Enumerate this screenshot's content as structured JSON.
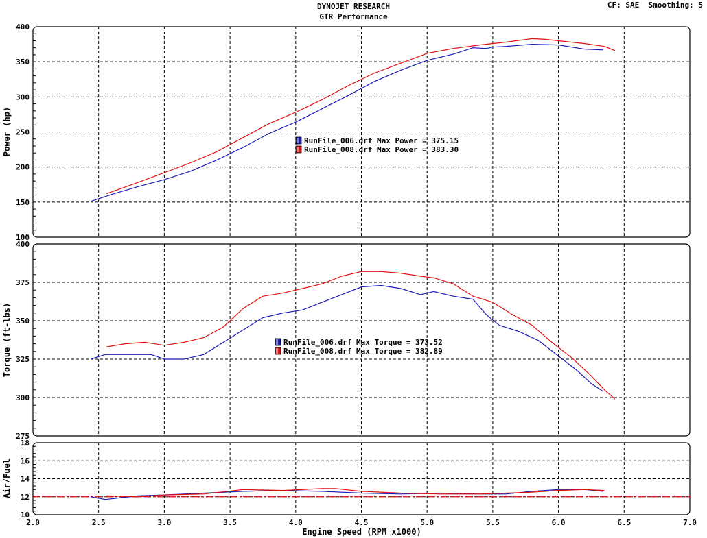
{
  "header": {
    "title": "DYNOJET RESEARCH",
    "subtitle": "GTR Performance",
    "cf_label": "CF: SAE",
    "smoothing_label": "Smoothing: 5"
  },
  "colors": {
    "run_006": "#1a1ab4",
    "run_008": "#e01010",
    "grid": "#000000",
    "afr_ref": "#e01010"
  },
  "chart_data": [
    {
      "type": "line",
      "title": "",
      "ylabel": "Power (hp)",
      "xlabel": "",
      "xlim": [
        2.0,
        7.0
      ],
      "ylim": [
        100,
        400
      ],
      "yticks": [
        100,
        150,
        200,
        250,
        300,
        350,
        400
      ],
      "grid": true,
      "series": [
        {
          "name": "RunFile_006.drf",
          "color": "#1a1ab4",
          "x": [
            2.44,
            2.6,
            2.8,
            3.0,
            3.2,
            3.4,
            3.6,
            3.8,
            4.0,
            4.2,
            4.4,
            4.6,
            4.8,
            5.0,
            5.2,
            5.35,
            5.45,
            5.5,
            5.6,
            5.8,
            6.0,
            6.2,
            6.34
          ],
          "y": [
            151,
            161,
            172,
            182,
            194,
            210,
            228,
            248,
            264,
            283,
            302,
            322,
            338,
            352,
            361,
            370,
            369,
            371,
            372,
            375,
            374,
            368,
            367
          ]
        },
        {
          "name": "RunFile_008.drf",
          "color": "#e01010",
          "x": [
            2.56,
            2.8,
            3.0,
            3.2,
            3.4,
            3.6,
            3.8,
            4.0,
            4.2,
            4.4,
            4.6,
            4.8,
            5.0,
            5.2,
            5.4,
            5.6,
            5.8,
            5.9,
            6.0,
            6.2,
            6.35,
            6.43
          ],
          "y": [
            162,
            178,
            192,
            206,
            222,
            242,
            262,
            278,
            296,
            316,
            334,
            348,
            362,
            369,
            374,
            378,
            383,
            382,
            380,
            376,
            372,
            366
          ]
        }
      ],
      "legend": [
        {
          "series": "RunFile_006.drf",
          "label": "RunFile_006.drf Max Power = 375.15"
        },
        {
          "series": "RunFile_008.drf",
          "label": "RunFile_008.drf Max Power = 383.30"
        }
      ]
    },
    {
      "type": "line",
      "title": "",
      "ylabel": "Torque (ft-lbs)",
      "xlabel": "",
      "xlim": [
        2.0,
        7.0
      ],
      "ylim": [
        275,
        400
      ],
      "yticks": [
        275,
        300,
        325,
        350,
        375,
        400
      ],
      "grid": true,
      "series": [
        {
          "name": "RunFile_006.drf",
          "color": "#1a1ab4",
          "x": [
            2.44,
            2.55,
            2.7,
            2.9,
            3.0,
            3.15,
            3.3,
            3.45,
            3.6,
            3.75,
            3.9,
            4.05,
            4.2,
            4.35,
            4.5,
            4.65,
            4.8,
            4.95,
            5.05,
            5.2,
            5.35,
            5.45,
            5.55,
            5.7,
            5.85,
            6.0,
            6.15,
            6.25,
            6.34
          ],
          "y": [
            325,
            328,
            328,
            328,
            325,
            325,
            328,
            336,
            344,
            352,
            355,
            357,
            362,
            367,
            372,
            373,
            371,
            367,
            369,
            366,
            364,
            354,
            347,
            343,
            337,
            327,
            317,
            309,
            304
          ]
        },
        {
          "name": "RunFile_008.drf",
          "color": "#e01010",
          "x": [
            2.56,
            2.7,
            2.85,
            3.0,
            3.15,
            3.3,
            3.45,
            3.6,
            3.75,
            3.9,
            4.05,
            4.2,
            4.35,
            4.5,
            4.65,
            4.8,
            4.95,
            5.05,
            5.2,
            5.35,
            5.5,
            5.65,
            5.8,
            5.95,
            6.1,
            6.25,
            6.35,
            6.43
          ],
          "y": [
            333,
            335,
            336,
            334,
            336,
            339,
            346,
            358,
            366,
            368,
            371,
            374,
            379,
            382,
            382,
            381,
            379,
            378,
            374,
            366,
            362,
            354,
            347,
            336,
            326,
            314,
            305,
            299
          ]
        }
      ],
      "legend": [
        {
          "series": "RunFile_006.drf",
          "label": "RunFile_006.drf Max Torque = 373.52"
        },
        {
          "series": "RunFile_008.drf",
          "label": "RunFile_008.drf Max Torque = 382.89"
        }
      ]
    },
    {
      "type": "line",
      "title": "",
      "ylabel": "Air/Fuel",
      "xlabel": "Engine Speed (RPM x1000)",
      "xlim": [
        2.0,
        7.0
      ],
      "ylim": [
        10,
        18
      ],
      "yticks": [
        10,
        12,
        14,
        16,
        18
      ],
      "xticks": [
        2.0,
        2.5,
        3.0,
        3.5,
        4.0,
        4.5,
        5.0,
        5.5,
        6.0,
        6.5,
        7.0
      ],
      "grid": true,
      "reference_line": 12.0,
      "series": [
        {
          "name": "RunFile_006.drf",
          "color": "#1a1ab4",
          "x": [
            2.44,
            2.55,
            2.8,
            3.0,
            3.3,
            3.6,
            3.9,
            4.2,
            4.5,
            4.8,
            5.1,
            5.4,
            5.6,
            5.8,
            6.0,
            6.2,
            6.34
          ],
          "y": [
            12.0,
            11.7,
            12.1,
            12.2,
            12.4,
            12.6,
            12.7,
            12.6,
            12.4,
            12.3,
            12.4,
            12.3,
            12.3,
            12.6,
            12.8,
            12.8,
            12.6
          ]
        },
        {
          "name": "RunFile_008.drf",
          "color": "#e01010",
          "x": [
            2.56,
            2.8,
            3.0,
            3.3,
            3.6,
            3.9,
            4.2,
            4.3,
            4.5,
            4.8,
            5.1,
            5.4,
            5.6,
            5.8,
            6.0,
            6.2,
            6.35
          ],
          "y": [
            12.1,
            12.0,
            12.2,
            12.3,
            12.8,
            12.7,
            12.9,
            12.9,
            12.6,
            12.4,
            12.3,
            12.3,
            12.4,
            12.5,
            12.7,
            12.8,
            12.7
          ]
        }
      ],
      "legend": []
    }
  ]
}
